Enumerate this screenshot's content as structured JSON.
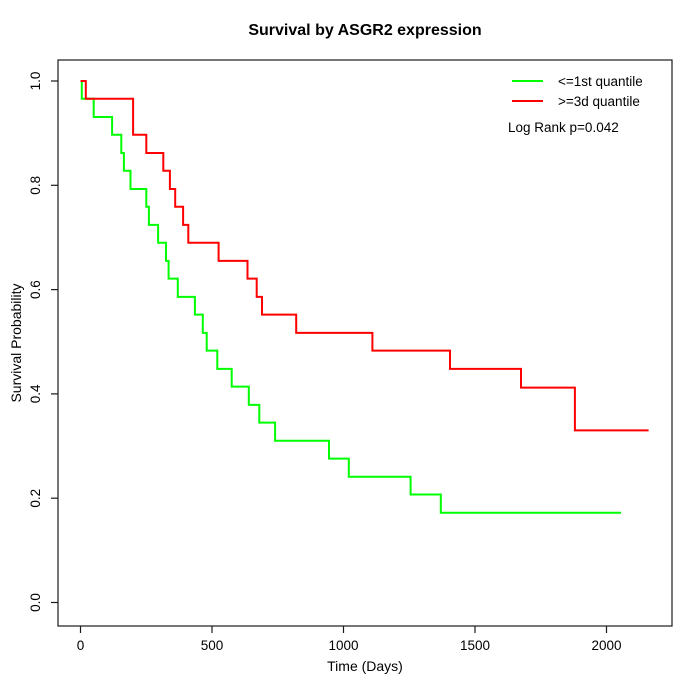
{
  "chart_data": {
    "type": "line",
    "subtype": "kaplan-meier-step",
    "title": "Survival by ASGR2 expression",
    "xlabel": "Time (Days)",
    "ylabel": "Survival Probability",
    "grid": false,
    "xlim": [
      -85,
      2250
    ],
    "ylim": [
      -0.045,
      1.045
    ],
    "x_ticks": [
      {
        "v": 0,
        "label": "0"
      },
      {
        "v": 500,
        "label": "500"
      },
      {
        "v": 1000,
        "label": "1000"
      },
      {
        "v": 1500,
        "label": "1500"
      },
      {
        "v": 2000,
        "label": "2000"
      }
    ],
    "y_ticks": [
      {
        "v": 0.0,
        "label": "0.0"
      },
      {
        "v": 0.2,
        "label": "0.2"
      },
      {
        "v": 0.4,
        "label": "0.4"
      },
      {
        "v": 0.6,
        "label": "0.6"
      },
      {
        "v": 0.8,
        "label": "0.8"
      },
      {
        "v": 1.0,
        "label": "1.0"
      }
    ],
    "legend": {
      "position": "top-right",
      "entries": [
        {
          "label": "<=1st quantile",
          "color": "#00FF00"
        },
        {
          "label": ">=3d quantile",
          "color": "#FF0000"
        }
      ]
    },
    "annotation": "Log Rank p=0.042",
    "series": [
      {
        "name": "<=1st quantile",
        "color": "#00FF00",
        "step": "post",
        "points": [
          [
            0,
            1.0
          ],
          [
            5,
            0.966
          ],
          [
            50,
            0.931
          ],
          [
            120,
            0.897
          ],
          [
            155,
            0.862
          ],
          [
            165,
            0.828
          ],
          [
            190,
            0.793
          ],
          [
            250,
            0.759
          ],
          [
            260,
            0.724
          ],
          [
            295,
            0.69
          ],
          [
            325,
            0.655
          ],
          [
            335,
            0.621
          ],
          [
            370,
            0.586
          ],
          [
            435,
            0.552
          ],
          [
            465,
            0.517
          ],
          [
            480,
            0.483
          ],
          [
            520,
            0.448
          ],
          [
            575,
            0.414
          ],
          [
            640,
            0.379
          ],
          [
            680,
            0.345
          ],
          [
            740,
            0.31
          ],
          [
            945,
            0.276
          ],
          [
            1020,
            0.241
          ],
          [
            1255,
            0.207
          ],
          [
            1370,
            0.172
          ],
          [
            2055,
            0.172
          ]
        ]
      },
      {
        "name": ">=3d quantile",
        "color": "#FF0000",
        "step": "post",
        "points": [
          [
            0,
            1.0
          ],
          [
            20,
            0.966
          ],
          [
            200,
            0.897
          ],
          [
            250,
            0.862
          ],
          [
            315,
            0.828
          ],
          [
            340,
            0.793
          ],
          [
            360,
            0.759
          ],
          [
            390,
            0.724
          ],
          [
            410,
            0.69
          ],
          [
            525,
            0.655
          ],
          [
            635,
            0.621
          ],
          [
            670,
            0.586
          ],
          [
            690,
            0.552
          ],
          [
            820,
            0.517
          ],
          [
            1110,
            0.483
          ],
          [
            1405,
            0.448
          ],
          [
            1675,
            0.412
          ],
          [
            1880,
            0.33
          ],
          [
            2160,
            0.33
          ]
        ]
      }
    ]
  }
}
